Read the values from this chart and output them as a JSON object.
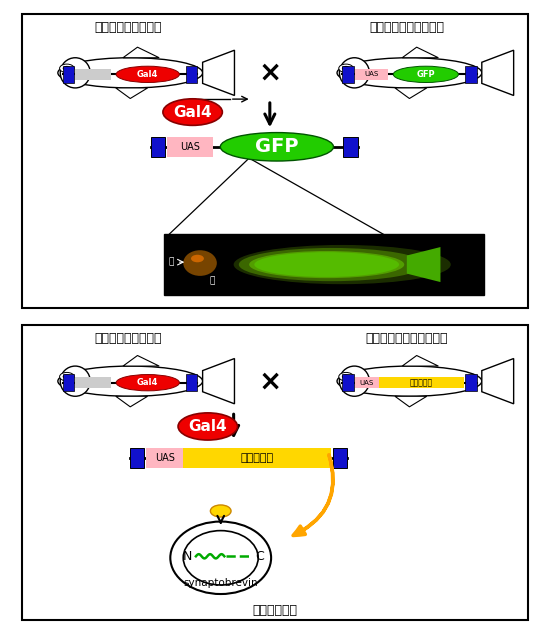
{
  "top_left_title": "遺伝子トラップ系統",
  "top_right_title": "リボーターフィッシュ",
  "bot_left_title": "遺伝子トラップ系統",
  "bot_right_title": "エフェクターフィッシュ",
  "gal4_text": "Gal4",
  "gfp_text": "GFP",
  "uas_text": "UAS",
  "tetanus_text": "破傷風毒素",
  "synaptobrevin_text": "synaptobrevin",
  "synapse_label": "シナプス小胞",
  "nose_label": "鼻",
  "eye_label": "眼",
  "cross": "×",
  "gal4_color": "#ee0000",
  "gfp_color": "#22cc00",
  "uas_color": "#ffb6c1",
  "tetanus_color": "#ffd700",
  "blue_color": "#1111cc",
  "gray_color": "#cccccc",
  "orange_arrow_color": "#ffa500",
  "line_color": "#000000",
  "white": "#ffffff",
  "black": "#000000"
}
